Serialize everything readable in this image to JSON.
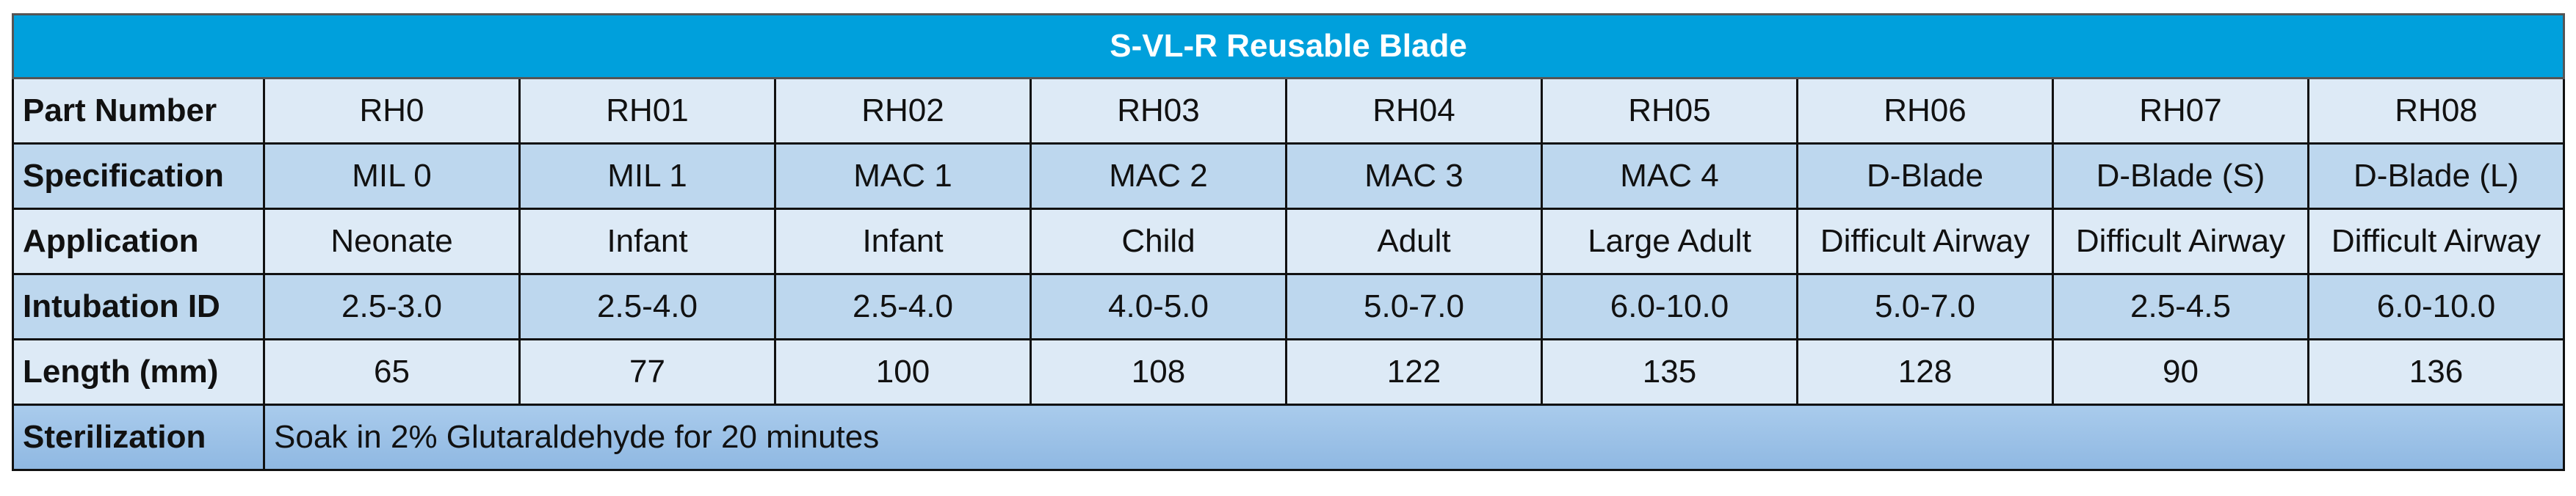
{
  "header": {
    "title": "S-VL-R Reusable Blade"
  },
  "table": {
    "rows": [
      {
        "label": "Part Number",
        "cells": [
          "RH0",
          "RH01",
          "RH02",
          "RH03",
          "RH04",
          "RH05",
          "RH06",
          "RH07",
          "RH08"
        ]
      },
      {
        "label": "Specification",
        "cells": [
          "MIL 0",
          "MIL 1",
          "MAC 1",
          "MAC 2",
          "MAC 3",
          "MAC 4",
          "D-Blade",
          "D-Blade (S)",
          "D-Blade (L)"
        ]
      },
      {
        "label": "Application",
        "cells": [
          "Neonate",
          "Infant",
          "Infant",
          "Child",
          "Adult",
          "Large Adult",
          "Difficult Airway",
          "Difficult Airway",
          "Difficult Airway"
        ]
      },
      {
        "label": "Intubation ID",
        "cells": [
          "2.5-3.0",
          "2.5-4.0",
          "2.5-4.0",
          "4.0-5.0",
          "5.0-7.0",
          "6.0-10.0",
          "5.0-7.0",
          "2.5-4.5",
          "6.0-10.0"
        ]
      },
      {
        "label": "Length (mm)",
        "cells": [
          "65",
          "77",
          "100",
          "108",
          "122",
          "135",
          "128",
          "90",
          "136"
        ]
      }
    ],
    "sterilization": {
      "label": "Sterilization",
      "text": "Soak in 2% Glutaraldehyde for 20 minutes"
    }
  }
}
